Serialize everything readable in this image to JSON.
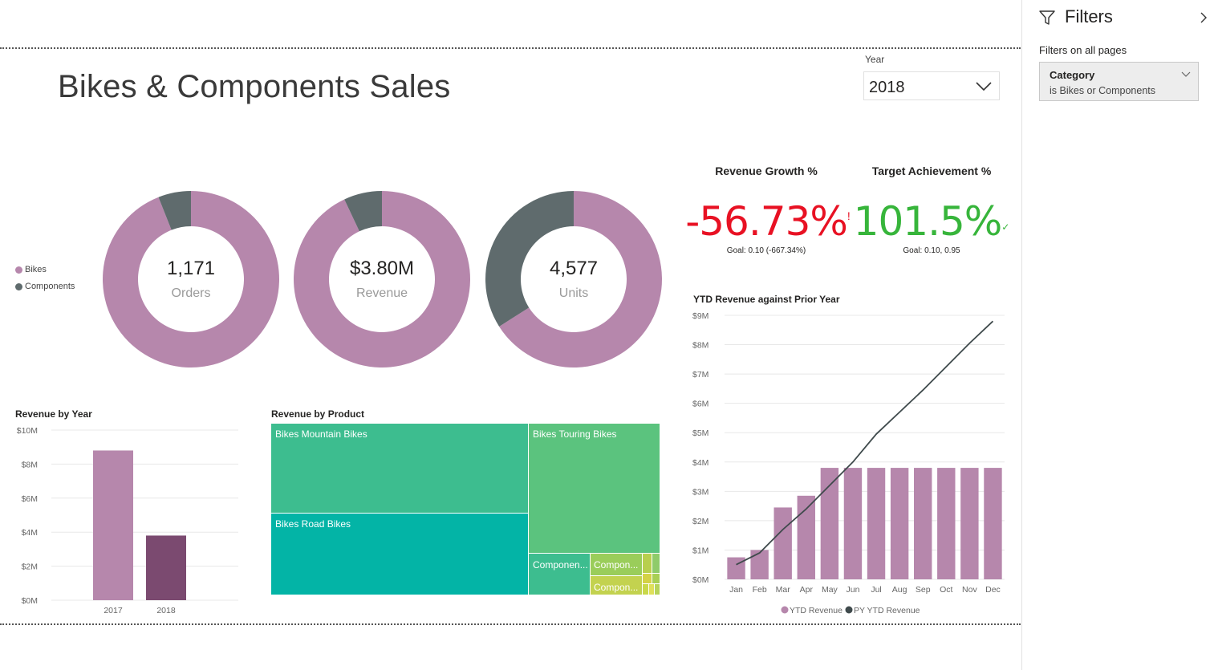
{
  "report": {
    "title": "Bikes & Components Sales"
  },
  "slicer": {
    "label": "Year",
    "selected": "2018"
  },
  "legend": {
    "items": [
      {
        "name": "Bikes",
        "color": "#b687ac"
      },
      {
        "name": "Components",
        "color": "#5f6b6d"
      }
    ]
  },
  "donuts": [
    {
      "value": "1,171",
      "label": "Orders",
      "bikes_share": 0.94,
      "components_share": 0.06
    },
    {
      "value": "$3.80M",
      "label": "Revenue",
      "bikes_share": 0.93,
      "components_share": 0.07
    },
    {
      "value": "4,577",
      "label": "Units",
      "bikes_share": 0.66,
      "components_share": 0.34
    }
  ],
  "kpis": [
    {
      "title": "Revenue Growth %",
      "value": "-56.73%",
      "indicator": "!",
      "goal": "Goal: 0.10 (-667.34%)",
      "color": "#e81123"
    },
    {
      "title": "Target Achievement %",
      "value": "101.5%",
      "indicator": "✓",
      "goal": "Goal: 0.10, 0.95",
      "color": "#37b53b"
    }
  ],
  "revenue_by_year": {
    "title": "Revenue by Year",
    "chart_data": {
      "type": "bar",
      "categories": [
        "2017",
        "2018"
      ],
      "values": [
        8.8,
        3.8
      ],
      "unit": "$M",
      "y_ticks": [
        "$0M",
        "$2M",
        "$4M",
        "$6M",
        "$8M",
        "$10M"
      ],
      "ylim": [
        0,
        10
      ],
      "colors": [
        "#b687ac",
        "#7b4a70"
      ]
    }
  },
  "revenue_by_product": {
    "title": "Revenue by Product",
    "chart_data": {
      "type": "treemap",
      "items": [
        {
          "label": "Bikes Mountain Bikes",
          "color": "#3dbd8f"
        },
        {
          "label": "Bikes Touring Bikes",
          "color": "#5bc37e"
        },
        {
          "label": "Bikes Road Bikes",
          "color": "#03b4a6"
        },
        {
          "label": "Componen...",
          "color": "#3dbd8f"
        },
        {
          "label": "Compon...",
          "color": "#9acd5a"
        },
        {
          "label": "Compon...",
          "color": "#c3d24f"
        }
      ]
    }
  },
  "ytd_revenue": {
    "title": "YTD Revenue against Prior Year",
    "chart_data": {
      "type": "bar+line",
      "categories": [
        "Jan",
        "Feb",
        "Mar",
        "Apr",
        "May",
        "Jun",
        "Jul",
        "Aug",
        "Sep",
        "Oct",
        "Nov",
        "Dec"
      ],
      "y_ticks": [
        "$0M",
        "$1M",
        "$2M",
        "$3M",
        "$4M",
        "$5M",
        "$6M",
        "$7M",
        "$8M",
        "$9M"
      ],
      "ylim": [
        0,
        9
      ],
      "series": [
        {
          "name": "YTD Revenue",
          "kind": "bar",
          "color": "#b687ac",
          "values": [
            0.75,
            1.0,
            2.45,
            2.85,
            3.8,
            3.8,
            3.8,
            3.8,
            3.8,
            3.8,
            3.8,
            3.8
          ]
        },
        {
          "name": "PY YTD Revenue",
          "kind": "line",
          "color": "#3f4a4c",
          "values": [
            0.5,
            0.9,
            1.7,
            2.4,
            3.2,
            4.0,
            4.95,
            5.7,
            6.45,
            7.25,
            8.05,
            8.8
          ]
        }
      ]
    }
  },
  "filters": {
    "title": "Filters",
    "subtitle": "Filters on all pages",
    "card": {
      "name": "Category",
      "description": "is Bikes or Components"
    }
  }
}
